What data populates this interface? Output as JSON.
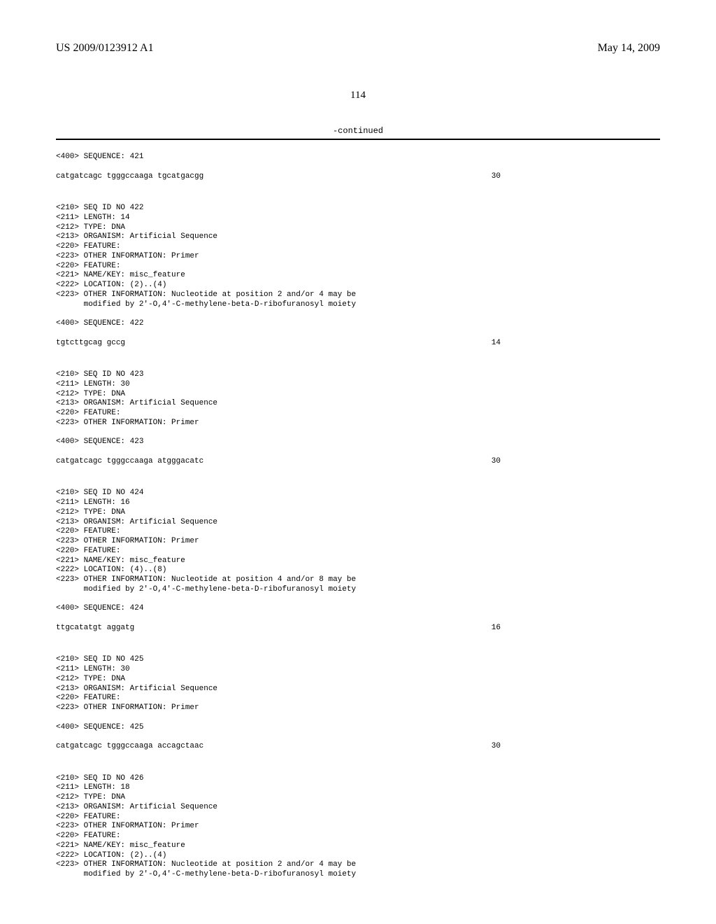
{
  "header": {
    "pub_number": "US 2009/0123912 A1",
    "pub_date": "May 14, 2009"
  },
  "page_number": "114",
  "continued_label": "-continued",
  "entries": [
    {
      "pre_lines": [
        "<400> SEQUENCE: 421"
      ],
      "sequence": "catgatcagc tgggccaaga tgcatgacgg",
      "seqlen": "30"
    },
    {
      "pre_lines": [
        "<210> SEQ ID NO 422",
        "<211> LENGTH: 14",
        "<212> TYPE: DNA",
        "<213> ORGANISM: Artificial Sequence",
        "<220> FEATURE:",
        "<223> OTHER INFORMATION: Primer",
        "<220> FEATURE:",
        "<221> NAME/KEY: misc_feature",
        "<222> LOCATION: (2)..(4)",
        "<223> OTHER INFORMATION: Nucleotide at position 2 and/or 4 may be",
        "      modified by 2'-O,4'-C-methylene-beta-D-ribofuranosyl moiety",
        "",
        "<400> SEQUENCE: 422"
      ],
      "sequence": "tgtcttgcag gccg",
      "seqlen": "14"
    },
    {
      "pre_lines": [
        "<210> SEQ ID NO 423",
        "<211> LENGTH: 30",
        "<212> TYPE: DNA",
        "<213> ORGANISM: Artificial Sequence",
        "<220> FEATURE:",
        "<223> OTHER INFORMATION: Primer",
        "",
        "<400> SEQUENCE: 423"
      ],
      "sequence": "catgatcagc tgggccaaga atgggacatc",
      "seqlen": "30"
    },
    {
      "pre_lines": [
        "<210> SEQ ID NO 424",
        "<211> LENGTH: 16",
        "<212> TYPE: DNA",
        "<213> ORGANISM: Artificial Sequence",
        "<220> FEATURE:",
        "<223> OTHER INFORMATION: Primer",
        "<220> FEATURE:",
        "<221> NAME/KEY: misc_feature",
        "<222> LOCATION: (4)..(8)",
        "<223> OTHER INFORMATION: Nucleotide at position 4 and/or 8 may be",
        "      modified by 2'-O,4'-C-methylene-beta-D-ribofuranosyl moiety",
        "",
        "<400> SEQUENCE: 424"
      ],
      "sequence": "ttgcatatgt aggatg",
      "seqlen": "16"
    },
    {
      "pre_lines": [
        "<210> SEQ ID NO 425",
        "<211> LENGTH: 30",
        "<212> TYPE: DNA",
        "<213> ORGANISM: Artificial Sequence",
        "<220> FEATURE:",
        "<223> OTHER INFORMATION: Primer",
        "",
        "<400> SEQUENCE: 425"
      ],
      "sequence": "catgatcagc tgggccaaga accagctaac",
      "seqlen": "30"
    },
    {
      "pre_lines": [
        "<210> SEQ ID NO 426",
        "<211> LENGTH: 18",
        "<212> TYPE: DNA",
        "<213> ORGANISM: Artificial Sequence",
        "<220> FEATURE:",
        "<223> OTHER INFORMATION: Primer",
        "<220> FEATURE:",
        "<221> NAME/KEY: misc_feature",
        "<222> LOCATION: (2)..(4)",
        "<223> OTHER INFORMATION: Nucleotide at position 2 and/or 4 may be",
        "      modified by 2'-O,4'-C-methylene-beta-D-ribofuranosyl moiety"
      ],
      "sequence": "",
      "seqlen": ""
    }
  ]
}
